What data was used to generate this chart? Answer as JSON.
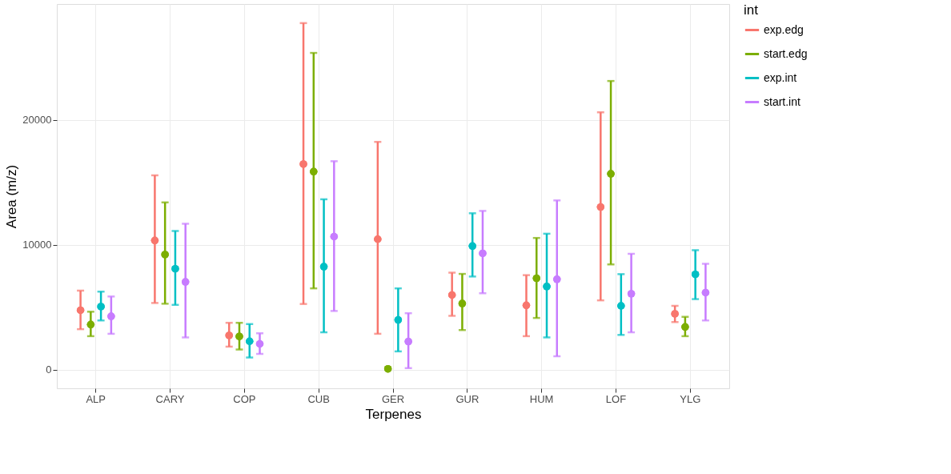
{
  "chart_data": {
    "type": "scatter",
    "xlabel": "Terpenes",
    "ylabel": "Area (m/z)",
    "legend_title": "int",
    "categories": [
      "ALP",
      "CARY",
      "COP",
      "CUB",
      "GER",
      "GUR",
      "HUM",
      "LOF",
      "YLG"
    ],
    "ylim": [
      -1500,
      29300
    ],
    "yticks": [
      0,
      10000,
      20000
    ],
    "grid": true,
    "legend": "right",
    "marker": "circle",
    "series": [
      {
        "name": "exp.edg",
        "color": "#f8766d",
        "values": [
          4760,
          10350,
          2740,
          16470,
          10450,
          5980,
          5150,
          13030,
          4470
        ],
        "errors": [
          [
            3240,
            6330
          ],
          [
            5340,
            15570
          ],
          [
            1840,
            3750
          ],
          [
            5260,
            27770
          ],
          [
            2870,
            18250
          ],
          [
            4310,
            7770
          ],
          [
            2680,
            7570
          ],
          [
            5550,
            20620
          ],
          [
            3810,
            5110
          ]
        ]
      },
      {
        "name": "start.edg",
        "color": "#7cae00",
        "values": [
          3610,
          9220,
          2660,
          15870,
          60,
          5300,
          7320,
          15690,
          3420
        ],
        "errors": [
          [
            2680,
            4640
          ],
          [
            5280,
            13400
          ],
          [
            1610,
            3750
          ],
          [
            6510,
            25380
          ],
          null,
          [
            3170,
            7670
          ],
          [
            4140,
            10550
          ],
          [
            8430,
            23130
          ],
          [
            2680,
            4230
          ]
        ]
      },
      {
        "name": "exp.int",
        "color": "#00bfc4",
        "values": [
          5050,
          8080,
          2270,
          8250,
          3980,
          9900,
          6660,
          5110,
          7630
        ],
        "errors": [
          [
            3940,
            6250
          ],
          [
            5190,
            11110
          ],
          [
            970,
            3650
          ],
          [
            2990,
            13650
          ],
          [
            1460,
            6510
          ],
          [
            7460,
            12530
          ],
          [
            2580,
            10890
          ],
          [
            2780,
            7650
          ],
          [
            5650,
            9570
          ]
        ]
      },
      {
        "name": "start.int",
        "color": "#c77cff",
        "values": [
          4270,
          7030,
          2060,
          10660,
          2250,
          9320,
          7240,
          6080,
          6170
        ],
        "errors": [
          [
            2870,
            5860
          ],
          [
            2580,
            11690
          ],
          [
            1260,
            2910
          ],
          [
            4700,
            16700
          ],
          [
            120,
            4520
          ],
          [
            6120,
            12720
          ],
          [
            1070,
            13560
          ],
          [
            2990,
            9280
          ],
          [
            3940,
            8480
          ]
        ]
      }
    ]
  }
}
